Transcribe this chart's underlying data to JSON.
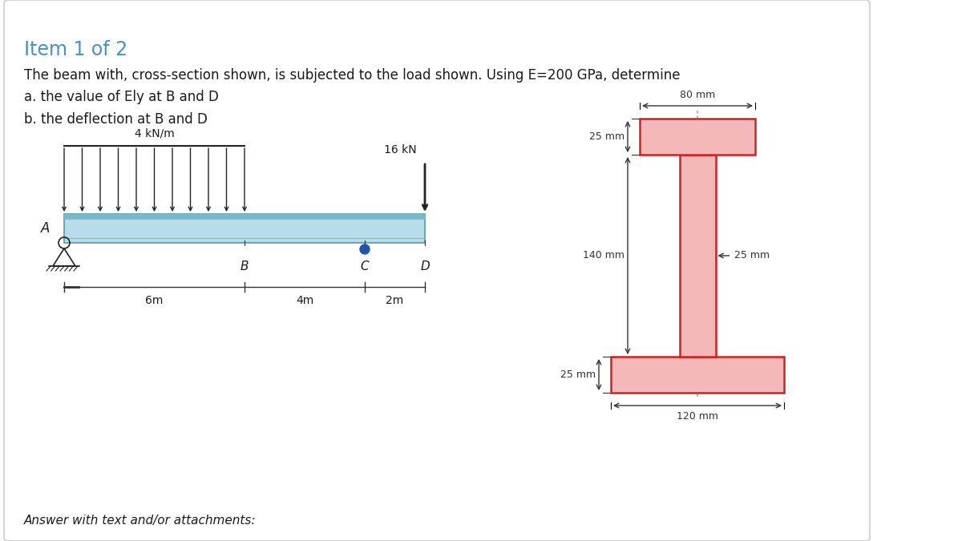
{
  "bg_color": "#ffffff",
  "title": "Item 1 of 2",
  "title_color": "#4a90c4",
  "body_line1": "The beam with, cross-section shown, is subjected to the load shown. Using E=200 GPa, determine",
  "body_line2": "a. the value of Ely at B and D",
  "body_line3": "b. the deflection at B and D",
  "footer": "Answer with text and/or attachments:",
  "beam_fill_light": "#b8dde8",
  "beam_fill_dark": "#7ab8cc",
  "beam_edge": "#5599aa",
  "dist_load_label": "4 kN/m",
  "point_load_label": "16 kN",
  "dim_6m": "6m",
  "dim_4m": "4m",
  "dim_2m": "2m",
  "point_A": "A",
  "point_B": "B",
  "point_C": "C",
  "point_D": "D",
  "cs_fill_color": "#f5b8b8",
  "cs_edge_color": "#cc2222",
  "cs_dashed_color": "#cc9999",
  "dim_80mm": "80 mm",
  "dim_25mm_top": "25 mm",
  "dim_25mm_web": "25 mm",
  "dim_140mm": "140 mm",
  "dim_25mm_bot": "25 mm",
  "dim_120mm": "120 mm",
  "arrow_color": "#222222",
  "dim_color": "#333333",
  "text_color": "#1a1a1a"
}
